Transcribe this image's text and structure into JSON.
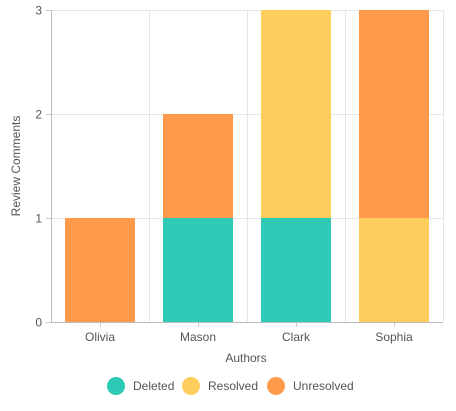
{
  "chart_data": {
    "type": "bar",
    "stacked": true,
    "title": "",
    "xlabel": "Authors",
    "ylabel": "Review Comments",
    "categories": [
      "Olivia",
      "Mason",
      "Clark",
      "Sophia"
    ],
    "series": [
      {
        "name": "Deleted",
        "color": "#2ecab5",
        "values": [
          0,
          1,
          1,
          0
        ]
      },
      {
        "name": "Resolved",
        "color": "#ffcd5c",
        "values": [
          0,
          0,
          2,
          1
        ]
      },
      {
        "name": "Unresolved",
        "color": "#ff9a4d",
        "values": [
          1,
          1,
          0,
          2
        ]
      }
    ],
    "ylim": [
      0,
      3
    ],
    "yticks": [
      0,
      1,
      2,
      3
    ],
    "grid": true,
    "legend_position": "bottom"
  }
}
